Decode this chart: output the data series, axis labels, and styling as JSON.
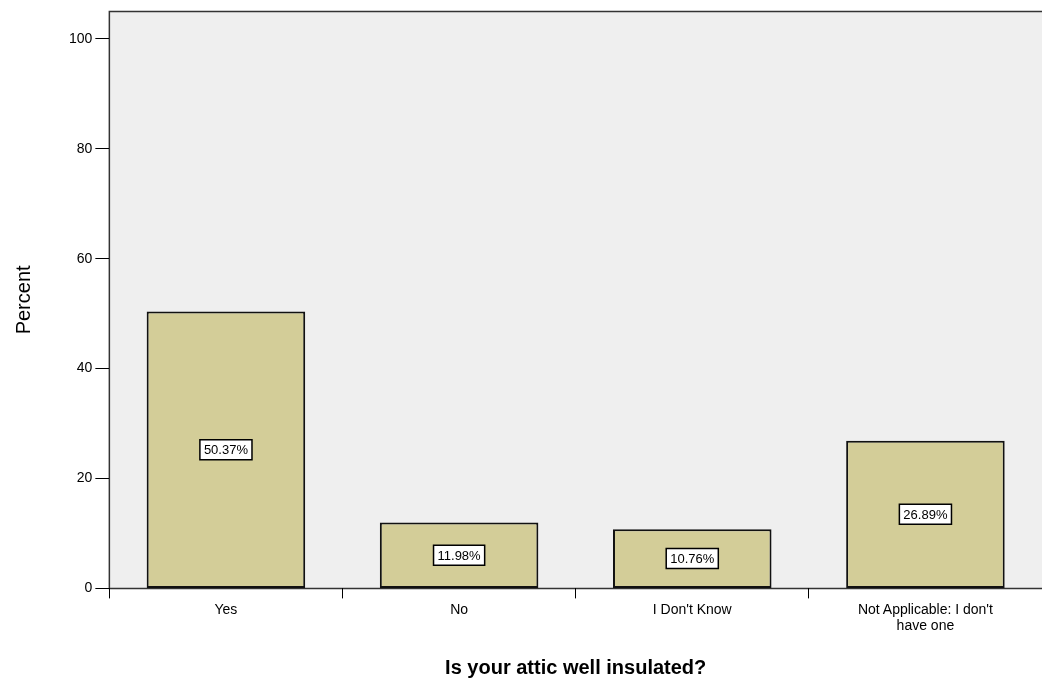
{
  "chart_data": {
    "type": "bar",
    "xlabel": "Is your attic well insulated?",
    "ylabel": "Percent",
    "categories": [
      "Yes",
      "No",
      "I Don't Know",
      "Not Applicable: I don't have one"
    ],
    "values": [
      50.37,
      11.98,
      10.76,
      26.89
    ],
    "value_labels": [
      "50.37%",
      "11.98%",
      "10.76%",
      "26.89%"
    ],
    "color": "#d3cd98",
    "ylim": [
      0,
      105
    ],
    "yticks": [
      0,
      20,
      40,
      60,
      80,
      100
    ],
    "grid": false,
    "legend": false
  }
}
